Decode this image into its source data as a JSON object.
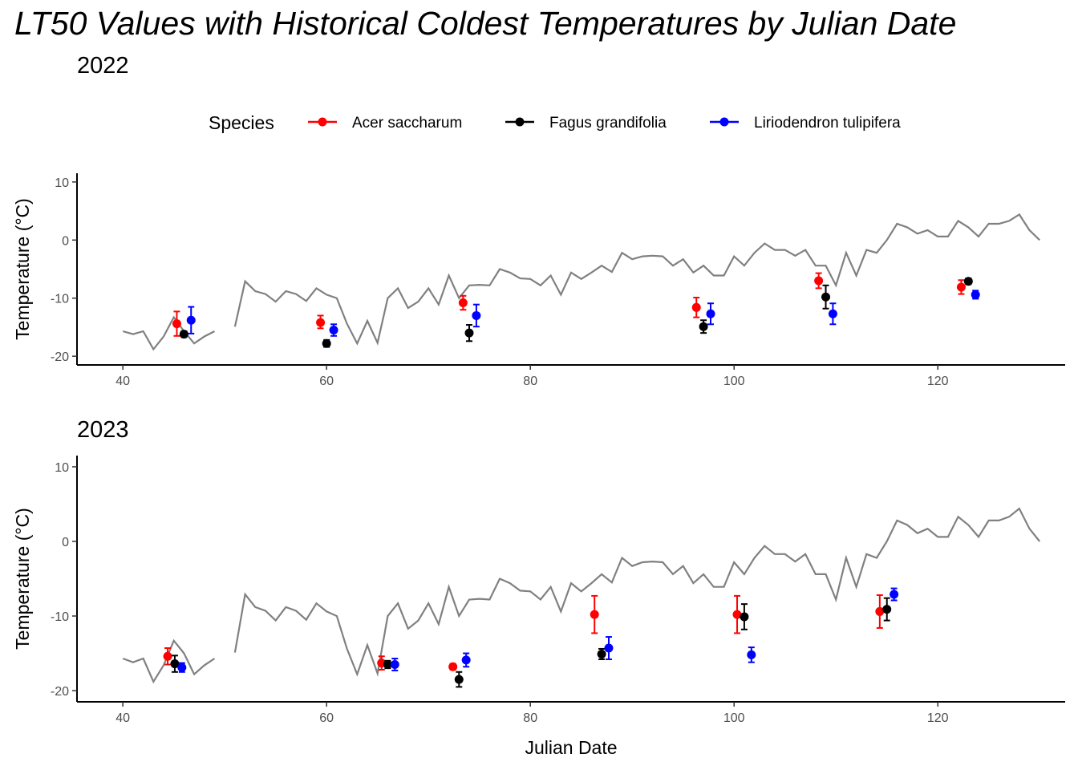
{
  "title": "LT50 Values with Historical Coldest Temperatures by Julian Date",
  "legend": {
    "title": "Species",
    "position": "top",
    "items": [
      {
        "label": "Acer saccharum",
        "color": "#ff0000"
      },
      {
        "label": "Fagus grandifolia",
        "color": "#000000"
      },
      {
        "label": "Liriodendron tulipifera",
        "color": "#0000ff"
      }
    ]
  },
  "colors": {
    "historical_line": "#808080",
    "axis": "#000000",
    "tick_text": "#4d4d4d"
  },
  "chart_data": [
    {
      "type": "line+errorbar",
      "subtitle": "2022",
      "xlabel": "",
      "ylabel": "Temperature (°C)",
      "xlim": [
        35.5,
        132.5
      ],
      "ylim": [
        -21.5,
        11.5
      ],
      "xticks": [
        40,
        60,
        80,
        100,
        120
      ],
      "yticks": [
        10,
        0,
        -10,
        -20
      ],
      "grid": false,
      "historical_line": {
        "segments": [
          [
            [
              40,
              -15.7
            ],
            [
              41,
              -16.2
            ],
            [
              42,
              -15.7
            ],
            [
              43,
              -18.8
            ],
            [
              44,
              -16.6
            ],
            [
              45,
              -13.3
            ],
            [
              46,
              -15.7
            ],
            [
              47,
              -17.8
            ],
            [
              48,
              -16.6
            ],
            [
              49,
              -15.7
            ]
          ],
          [
            [
              51,
              -14.9
            ],
            [
              52,
              -7.1
            ],
            [
              53,
              -8.8
            ],
            [
              54,
              -9.3
            ],
            [
              55,
              -10.6
            ],
            [
              56,
              -8.8
            ],
            [
              57,
              -9.3
            ],
            [
              58,
              -10.5
            ],
            [
              59,
              -8.3
            ],
            [
              60,
              -9.4
            ],
            [
              61,
              -10.0
            ],
            [
              62,
              -14.4
            ],
            [
              63,
              -17.8
            ],
            [
              64,
              -13.9
            ],
            [
              65,
              -17.7
            ],
            [
              66,
              -10.0
            ],
            [
              67,
              -8.3
            ],
            [
              68,
              -11.7
            ],
            [
              69,
              -10.6
            ],
            [
              70,
              -8.3
            ],
            [
              71,
              -11.1
            ],
            [
              72,
              -6.1
            ],
            [
              73,
              -10.0
            ],
            [
              74,
              -7.8
            ],
            [
              75,
              -7.7
            ],
            [
              76,
              -7.8
            ],
            [
              77,
              -5.0
            ],
            [
              78,
              -5.6
            ],
            [
              79,
              -6.6
            ],
            [
              80,
              -6.7
            ],
            [
              81,
              -7.8
            ],
            [
              82,
              -6.1
            ],
            [
              83,
              -9.4
            ],
            [
              84,
              -5.6
            ],
            [
              85,
              -6.7
            ],
            [
              86,
              -5.6
            ],
            [
              87,
              -4.4
            ],
            [
              88,
              -5.5
            ],
            [
              89,
              -2.2
            ],
            [
              90,
              -3.3
            ],
            [
              91,
              -2.8
            ],
            [
              92,
              -2.7
            ],
            [
              93,
              -2.8
            ],
            [
              94,
              -4.4
            ],
            [
              95,
              -3.3
            ],
            [
              96,
              -5.6
            ],
            [
              97,
              -4.4
            ],
            [
              98,
              -6.1
            ],
            [
              99,
              -6.1
            ],
            [
              100,
              -2.8
            ],
            [
              101,
              -4.4
            ],
            [
              102,
              -2.2
            ],
            [
              103,
              -0.6
            ],
            [
              104,
              -1.7
            ],
            [
              105,
              -1.7
            ],
            [
              106,
              -2.7
            ],
            [
              107,
              -1.7
            ],
            [
              108,
              -4.4
            ],
            [
              109,
              -4.4
            ],
            [
              110,
              -7.8
            ],
            [
              111,
              -2.2
            ],
            [
              112,
              -6.1
            ],
            [
              113,
              -1.7
            ],
            [
              114,
              -2.2
            ],
            [
              115,
              0.0
            ],
            [
              116,
              2.8
            ],
            [
              117,
              2.2
            ],
            [
              118,
              1.1
            ],
            [
              119,
              1.7
            ],
            [
              120,
              0.6
            ],
            [
              121,
              0.6
            ],
            [
              122,
              3.3
            ],
            [
              123,
              2.2
            ],
            [
              124,
              0.6
            ],
            [
              125,
              2.8
            ],
            [
              126,
              2.8
            ],
            [
              127,
              3.3
            ],
            [
              128,
              4.4
            ],
            [
              129,
              1.7
            ],
            [
              130,
              0.0
            ]
          ]
        ]
      },
      "series": [
        {
          "name": "Acer saccharum",
          "points": [
            {
              "x": 45.3,
              "y": -14.4,
              "ymin": -16.5,
              "ymax": -12.3
            },
            {
              "x": 59.4,
              "y": -14.2,
              "ymin": -15.2,
              "ymax": -13.0
            },
            {
              "x": 73.4,
              "y": -10.8,
              "ymin": -12.0,
              "ymax": -9.6
            },
            {
              "x": 96.3,
              "y": -11.6,
              "ymin": -13.3,
              "ymax": -9.9
            },
            {
              "x": 108.3,
              "y": -7.0,
              "ymin": -8.3,
              "ymax": -5.7
            },
            {
              "x": 122.3,
              "y": -8.1,
              "ymin": -9.3,
              "ymax": -6.9
            }
          ]
        },
        {
          "name": "Fagus grandifolia",
          "points": [
            {
              "x": 46.0,
              "y": -16.2,
              "ymin": -16.7,
              "ymax": -15.7
            },
            {
              "x": 60.0,
              "y": -17.8,
              "ymin": -18.4,
              "ymax": -17.2
            },
            {
              "x": 74.0,
              "y": -16.0,
              "ymin": -17.4,
              "ymax": -14.6
            },
            {
              "x": 97.0,
              "y": -14.9,
              "ymin": -16.0,
              "ymax": -13.8
            },
            {
              "x": 109.0,
              "y": -9.8,
              "ymin": -11.8,
              "ymax": -7.8
            },
            {
              "x": 123.0,
              "y": -7.1,
              "ymin": -7.6,
              "ymax": -6.6
            }
          ]
        },
        {
          "name": "Liriodendron tulipifera",
          "points": [
            {
              "x": 46.7,
              "y": -13.8,
              "ymin": -16.1,
              "ymax": -11.5
            },
            {
              "x": 60.7,
              "y": -15.5,
              "ymin": -16.5,
              "ymax": -14.5
            },
            {
              "x": 74.7,
              "y": -13.0,
              "ymin": -14.9,
              "ymax": -11.1
            },
            {
              "x": 97.7,
              "y": -12.7,
              "ymin": -14.5,
              "ymax": -10.9
            },
            {
              "x": 109.7,
              "y": -12.7,
              "ymin": -14.5,
              "ymax": -10.9
            },
            {
              "x": 123.7,
              "y": -9.4,
              "ymin": -10.1,
              "ymax": -8.7
            }
          ]
        }
      ]
    },
    {
      "type": "line+errorbar",
      "subtitle": "2023",
      "xlabel": "Julian Date",
      "ylabel": "Temperature (°C)",
      "xlim": [
        35.5,
        132.5
      ],
      "ylim": [
        -21.5,
        11.5
      ],
      "xticks": [
        40,
        60,
        80,
        100,
        120
      ],
      "yticks": [
        10,
        0,
        -10,
        -20
      ],
      "grid": false,
      "historical_line": {
        "segments": [
          [
            [
              40,
              -15.7
            ],
            [
              41,
              -16.2
            ],
            [
              42,
              -15.7
            ],
            [
              43,
              -18.8
            ],
            [
              44,
              -16.6
            ],
            [
              45,
              -13.3
            ],
            [
              46,
              -15.0
            ],
            [
              47,
              -17.8
            ],
            [
              48,
              -16.6
            ],
            [
              49,
              -15.7
            ]
          ],
          [
            [
              51,
              -14.9
            ],
            [
              52,
              -7.1
            ],
            [
              53,
              -8.8
            ],
            [
              54,
              -9.3
            ],
            [
              55,
              -10.6
            ],
            [
              56,
              -8.8
            ],
            [
              57,
              -9.3
            ],
            [
              58,
              -10.5
            ],
            [
              59,
              -8.3
            ],
            [
              60,
              -9.4
            ],
            [
              61,
              -10.0
            ],
            [
              62,
              -14.4
            ],
            [
              63,
              -17.8
            ],
            [
              64,
              -13.9
            ],
            [
              65,
              -17.7
            ],
            [
              66,
              -10.0
            ],
            [
              67,
              -8.3
            ],
            [
              68,
              -11.7
            ],
            [
              69,
              -10.6
            ],
            [
              70,
              -8.3
            ],
            [
              71,
              -11.1
            ],
            [
              72,
              -6.1
            ],
            [
              73,
              -10.0
            ],
            [
              74,
              -7.8
            ],
            [
              75,
              -7.7
            ],
            [
              76,
              -7.8
            ],
            [
              77,
              -5.0
            ],
            [
              78,
              -5.6
            ],
            [
              79,
              -6.6
            ],
            [
              80,
              -6.7
            ],
            [
              81,
              -7.8
            ],
            [
              82,
              -6.1
            ],
            [
              83,
              -9.4
            ],
            [
              84,
              -5.6
            ],
            [
              85,
              -6.7
            ],
            [
              86,
              -5.6
            ],
            [
              87,
              -4.4
            ],
            [
              88,
              -5.5
            ],
            [
              89,
              -2.2
            ],
            [
              90,
              -3.3
            ],
            [
              91,
              -2.8
            ],
            [
              92,
              -2.7
            ],
            [
              93,
              -2.8
            ],
            [
              94,
              -4.4
            ],
            [
              95,
              -3.3
            ],
            [
              96,
              -5.6
            ],
            [
              97,
              -4.4
            ],
            [
              98,
              -6.1
            ],
            [
              99,
              -6.1
            ],
            [
              100,
              -2.8
            ],
            [
              101,
              -4.4
            ],
            [
              102,
              -2.2
            ],
            [
              103,
              -0.6
            ],
            [
              104,
              -1.7
            ],
            [
              105,
              -1.7
            ],
            [
              106,
              -2.7
            ],
            [
              107,
              -1.7
            ],
            [
              108,
              -4.4
            ],
            [
              109,
              -4.4
            ],
            [
              110,
              -7.8
            ],
            [
              111,
              -2.2
            ],
            [
              112,
              -6.1
            ],
            [
              113,
              -1.7
            ],
            [
              114,
              -2.2
            ],
            [
              115,
              0.0
            ],
            [
              116,
              2.8
            ],
            [
              117,
              2.2
            ],
            [
              118,
              1.1
            ],
            [
              119,
              1.7
            ],
            [
              120,
              0.6
            ],
            [
              121,
              0.6
            ],
            [
              122,
              3.3
            ],
            [
              123,
              2.2
            ],
            [
              124,
              0.6
            ],
            [
              125,
              2.8
            ],
            [
              126,
              2.8
            ],
            [
              127,
              3.3
            ],
            [
              128,
              4.4
            ],
            [
              129,
              1.7
            ],
            [
              130,
              0.0
            ]
          ]
        ]
      },
      "series": [
        {
          "name": "Acer saccharum",
          "points": [
            {
              "x": 44.4,
              "y": -15.4,
              "ymin": -16.5,
              "ymax": -14.3
            },
            {
              "x": 65.4,
              "y": -16.3,
              "ymin": -17.2,
              "ymax": -15.4
            },
            {
              "x": 72.4,
              "y": -16.8,
              "ymin": -17.2,
              "ymax": -16.4
            },
            {
              "x": 86.3,
              "y": -9.8,
              "ymin": -12.3,
              "ymax": -7.3
            },
            {
              "x": 100.3,
              "y": -9.8,
              "ymin": -12.3,
              "ymax": -7.3
            },
            {
              "x": 114.3,
              "y": -9.4,
              "ymin": -11.6,
              "ymax": -7.2
            }
          ]
        },
        {
          "name": "Fagus grandifolia",
          "points": [
            {
              "x": 45.1,
              "y": -16.4,
              "ymin": -17.5,
              "ymax": -15.3
            },
            {
              "x": 66.0,
              "y": -16.5,
              "ymin": -17.0,
              "ymax": -16.0
            },
            {
              "x": 73.0,
              "y": -18.5,
              "ymin": -19.5,
              "ymax": -17.5
            },
            {
              "x": 87.0,
              "y": -15.1,
              "ymin": -15.8,
              "ymax": -14.4
            },
            {
              "x": 101.0,
              "y": -10.1,
              "ymin": -11.8,
              "ymax": -8.4
            },
            {
              "x": 115.0,
              "y": -9.1,
              "ymin": -10.6,
              "ymax": -7.6
            }
          ]
        },
        {
          "name": "Liriodendron tulipifera",
          "points": [
            {
              "x": 45.8,
              "y": -16.9,
              "ymin": -17.5,
              "ymax": -16.3
            },
            {
              "x": 66.7,
              "y": -16.5,
              "ymin": -17.3,
              "ymax": -15.7
            },
            {
              "x": 73.7,
              "y": -15.9,
              "ymin": -16.8,
              "ymax": -15.0
            },
            {
              "x": 87.7,
              "y": -14.3,
              "ymin": -15.8,
              "ymax": -12.8
            },
            {
              "x": 101.7,
              "y": -15.2,
              "ymin": -16.2,
              "ymax": -14.2
            },
            {
              "x": 115.7,
              "y": -7.1,
              "ymin": -7.9,
              "ymax": -6.3
            }
          ]
        }
      ]
    }
  ]
}
